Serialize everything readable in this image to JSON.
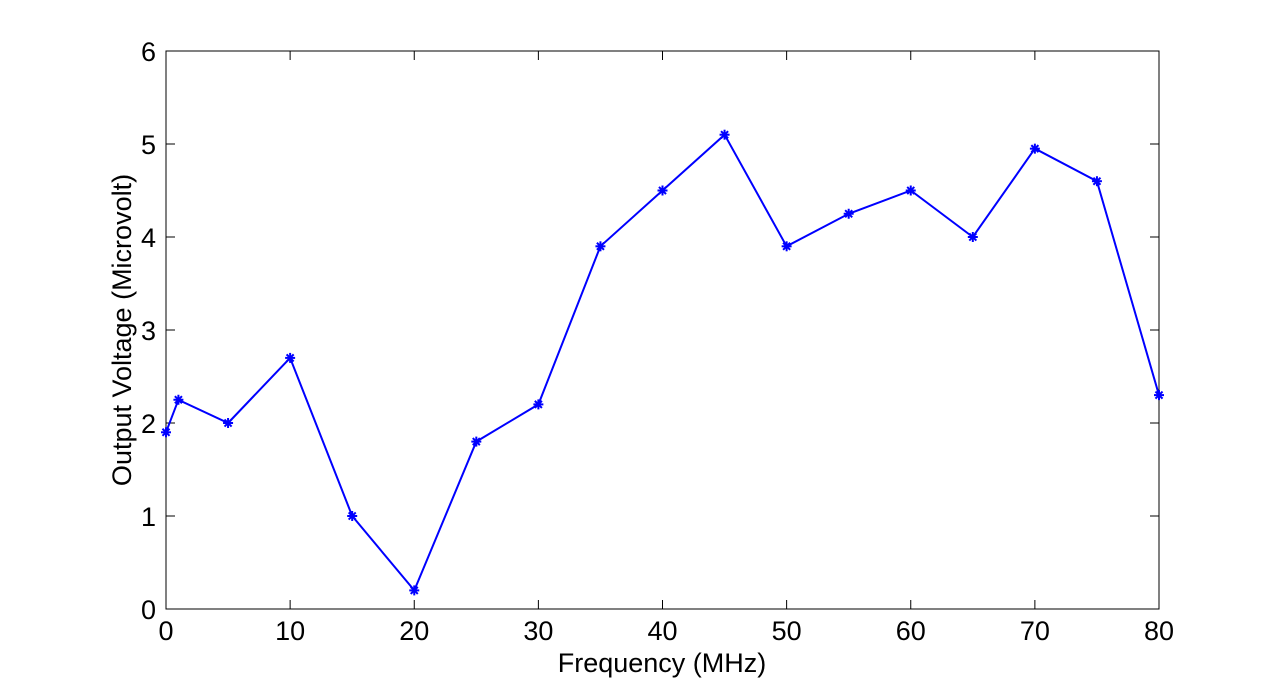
{
  "chart_data": {
    "type": "line",
    "title": "",
    "xlabel": "Frequency (MHz)",
    "ylabel": "Output Voltage (Microvolt)",
    "xlim": [
      0,
      80
    ],
    "ylim": [
      0,
      6
    ],
    "xticks": [
      0,
      10,
      20,
      30,
      40,
      50,
      60,
      70,
      80
    ],
    "yticks": [
      0,
      1,
      2,
      3,
      4,
      5,
      6
    ],
    "grid": false,
    "legend": false,
    "marker": "asterisk",
    "line_color": "#0000ff",
    "series": [
      {
        "x": [
          0,
          1,
          5,
          10,
          15,
          20,
          25,
          30,
          35,
          40,
          45,
          50,
          55,
          60,
          65,
          70,
          75,
          80
        ],
        "values": [
          1.9,
          2.25,
          2.0,
          2.7,
          1.0,
          0.2,
          1.8,
          2.2,
          3.9,
          4.5,
          5.1,
          3.9,
          4.25,
          4.5,
          4.0,
          4.95,
          4.6,
          2.3
        ]
      }
    ]
  }
}
